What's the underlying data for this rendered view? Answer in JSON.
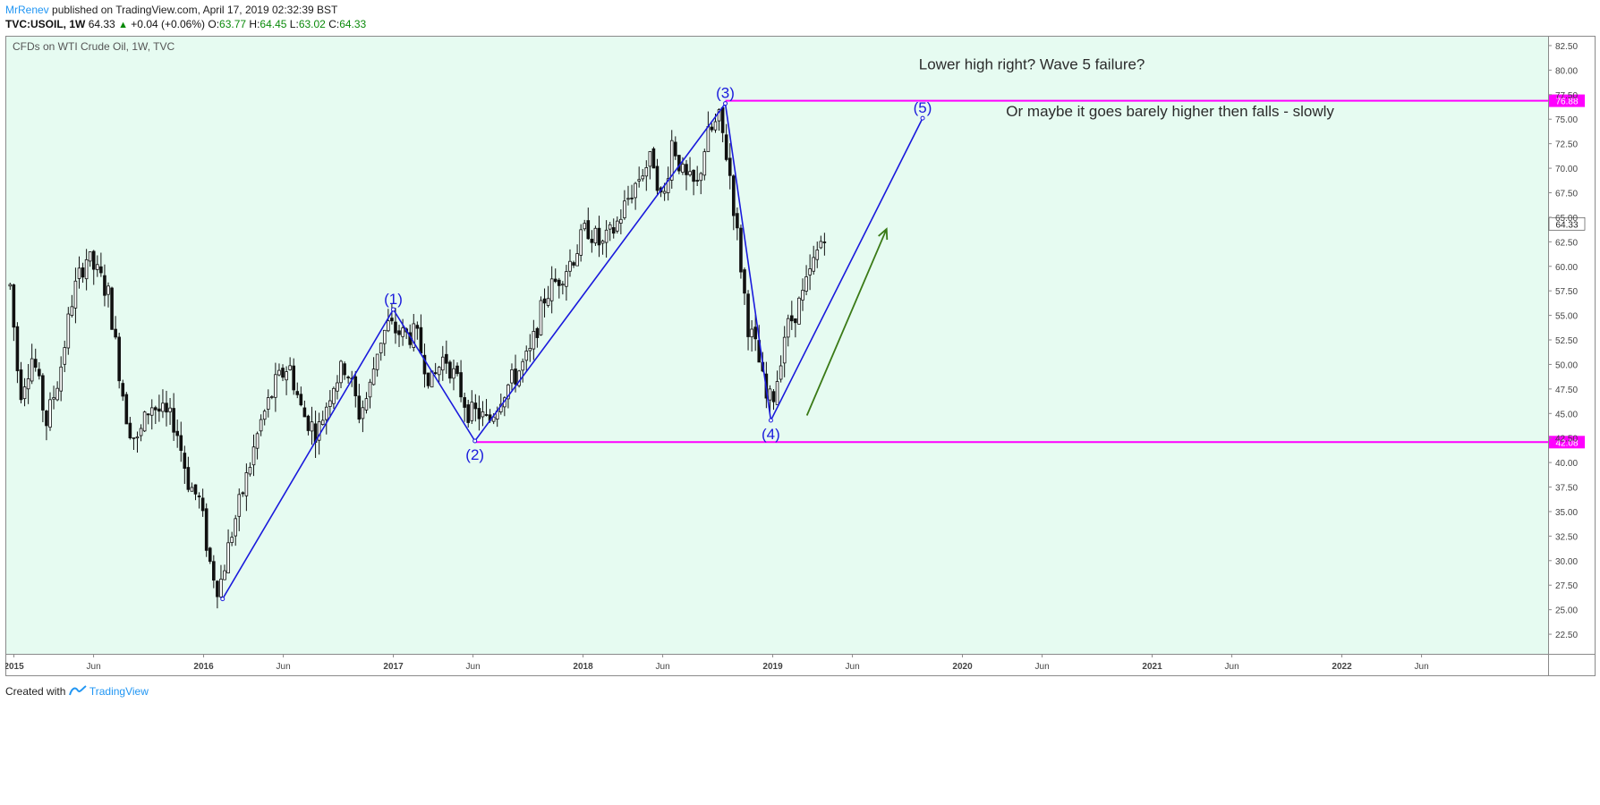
{
  "header": {
    "author": "MrRenev",
    "published_text": "published on TradingView.com, April 17, 2019 02:32:39 BST"
  },
  "ohlc": {
    "symbol": "TVC:USOIL, 1W",
    "last": "64.33",
    "change_icon": "triangle-up-icon",
    "change": "+0.04 (+0.06%)",
    "o_label": "O:",
    "o": "63.77",
    "h_label": "H:",
    "h": "64.45",
    "l_label": "L:",
    "l": "63.02",
    "c_label": "C:",
    "c": "64.33"
  },
  "footer": {
    "created_with": "Created with",
    "brand": "TradingView",
    "logo_icon": "tradingview-logo-icon"
  },
  "colors": {
    "background": "#e6fbf1",
    "wave_line": "#1a1adc",
    "level_line": "#ff00ff",
    "arrow": "#3a7a16",
    "candle": "#111111"
  },
  "chart_data": {
    "type": "candlestick",
    "title": "CFDs on WTI Crude Oil, 1W, TVC",
    "ylim": [
      20.5,
      83.5
    ],
    "y_ticks": [
      "82.50",
      "80.00",
      "77.50",
      "75.00",
      "72.50",
      "70.00",
      "67.50",
      "65.00",
      "62.50",
      "60.00",
      "57.50",
      "55.00",
      "52.50",
      "50.00",
      "47.50",
      "45.00",
      "42.50",
      "40.00",
      "37.50",
      "35.00",
      "32.50",
      "30.00",
      "27.50",
      "25.00",
      "22.50"
    ],
    "x_labels": [
      {
        "label": "2015",
        "t": 2015.0,
        "bold": true
      },
      {
        "label": "Jun",
        "t": 2015.42,
        "bold": false
      },
      {
        "label": "2016",
        "t": 2016.0,
        "bold": true
      },
      {
        "label": "Jun",
        "t": 2016.42,
        "bold": false
      },
      {
        "label": "2017",
        "t": 2017.0,
        "bold": true
      },
      {
        "label": "Jun",
        "t": 2017.42,
        "bold": false
      },
      {
        "label": "2018",
        "t": 2018.0,
        "bold": true
      },
      {
        "label": "Jun",
        "t": 2018.42,
        "bold": false
      },
      {
        "label": "2019",
        "t": 2019.0,
        "bold": true
      },
      {
        "label": "Jun",
        "t": 2019.42,
        "bold": false
      },
      {
        "label": "2020",
        "t": 2020.0,
        "bold": true
      },
      {
        "label": "Jun",
        "t": 2020.42,
        "bold": false
      },
      {
        "label": "2021",
        "t": 2021.0,
        "bold": true
      },
      {
        "label": "Jun",
        "t": 2021.42,
        "bold": false
      },
      {
        "label": "2022",
        "t": 2022.0,
        "bold": true
      },
      {
        "label": "Jun",
        "t": 2022.42,
        "bold": false
      }
    ],
    "price_path": [
      [
        2014.98,
        58
      ],
      [
        2015.03,
        47
      ],
      [
        2015.1,
        51
      ],
      [
        2015.17,
        44
      ],
      [
        2015.24,
        49
      ],
      [
        2015.31,
        57
      ],
      [
        2015.38,
        61
      ],
      [
        2015.45,
        59
      ],
      [
        2015.5,
        57
      ],
      [
        2015.55,
        50
      ],
      [
        2015.6,
        44
      ],
      [
        2015.65,
        42
      ],
      [
        2015.72,
        46
      ],
      [
        2015.78,
        45
      ],
      [
        2015.85,
        44
      ],
      [
        2015.92,
        38
      ],
      [
        2015.98,
        36
      ],
      [
        2016.03,
        30
      ],
      [
        2016.08,
        27
      ],
      [
        2016.15,
        33
      ],
      [
        2016.22,
        38
      ],
      [
        2016.3,
        44
      ],
      [
        2016.38,
        48
      ],
      [
        2016.45,
        50
      ],
      [
        2016.52,
        45
      ],
      [
        2016.6,
        43
      ],
      [
        2016.68,
        48
      ],
      [
        2016.75,
        50
      ],
      [
        2016.82,
        45
      ],
      [
        2016.87,
        47
      ],
      [
        2016.92,
        52
      ],
      [
        2016.97,
        54
      ],
      [
        2017.05,
        53
      ],
      [
        2017.12,
        53
      ],
      [
        2017.2,
        48
      ],
      [
        2017.27,
        51
      ],
      [
        2017.34,
        48
      ],
      [
        2017.4,
        45
      ],
      [
        2017.45,
        45
      ],
      [
        2017.5,
        44
      ],
      [
        2017.57,
        47
      ],
      [
        2017.65,
        49
      ],
      [
        2017.72,
        51
      ],
      [
        2017.8,
        57
      ],
      [
        2017.88,
        59
      ],
      [
        2017.95,
        61
      ],
      [
        2018.02,
        64
      ],
      [
        2018.1,
        62
      ],
      [
        2018.17,
        64
      ],
      [
        2018.24,
        67
      ],
      [
        2018.32,
        70
      ],
      [
        2018.37,
        71
      ],
      [
        2018.42,
        66
      ],
      [
        2018.47,
        73
      ],
      [
        2018.53,
        69
      ],
      [
        2018.6,
        68
      ],
      [
        2018.65,
        73
      ],
      [
        2018.72,
        75
      ],
      [
        2018.77,
        70
      ],
      [
        2018.82,
        62
      ],
      [
        2018.87,
        54
      ],
      [
        2018.92,
        51
      ],
      [
        2018.97,
        46
      ],
      [
        2019.01,
        47
      ],
      [
        2019.06,
        53
      ],
      [
        2019.11,
        55
      ],
      [
        2019.16,
        57
      ],
      [
        2019.21,
        60
      ],
      [
        2019.26,
        63
      ],
      [
        2019.29,
        64.33
      ]
    ],
    "wave_points": [
      {
        "label": "",
        "t": 2016.1,
        "y": 26.1
      },
      {
        "label": "(1)",
        "t": 2017.0,
        "y": 55.6
      },
      {
        "label": "(2)",
        "t": 2017.43,
        "y": 42.2
      },
      {
        "label": "(3)",
        "t": 2018.75,
        "y": 76.6
      },
      {
        "label": "(4)",
        "t": 2018.99,
        "y": 44.3
      },
      {
        "label": "(5)",
        "t": 2019.79,
        "y": 75.1
      }
    ],
    "levels": [
      {
        "value": 76.88,
        "label": "76.88",
        "t_start": 2018.75
      },
      {
        "value": 42.08,
        "label": "42.08",
        "t_start": 2017.43
      }
    ],
    "last_price": {
      "value": 64.33,
      "label": "64.33"
    },
    "arrow": {
      "t1": 2019.18,
      "y1": 44.8,
      "t2": 2019.6,
      "y2": 63.8
    },
    "annotations": [
      {
        "text": "Lower high right?  Wave 5 failure?",
        "t": 2019.77,
        "y": 80.1
      },
      {
        "text": "Or maybe it goes barely higher then falls - slowly",
        "t": 2020.23,
        "y": 75.3
      }
    ]
  }
}
